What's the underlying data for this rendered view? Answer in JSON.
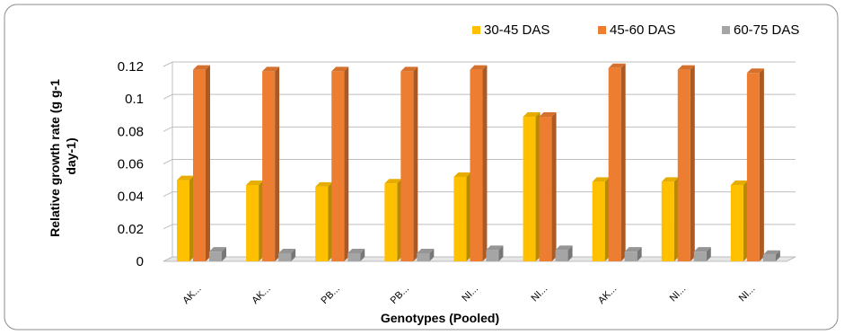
{
  "chart_data": {
    "type": "bar",
    "title": "",
    "xlabel": "Genotypes (Pooled)",
    "ylabel": "Relative growth rate (g g-1 day-1)",
    "ylabel_lines": [
      "Relative growth rate (g g-1",
      "day-1)"
    ],
    "categories": [
      "AK...",
      "AK...",
      "PB...",
      "PB...",
      "NI...",
      "NI...",
      "AK...",
      "NI...",
      "NI..."
    ],
    "yticks": [
      "0",
      "0.02",
      "0.04",
      "0.06",
      "0.08",
      "0.1",
      "0.12"
    ],
    "ylim": [
      0,
      0.12
    ],
    "grid": true,
    "legend_position": "top-right",
    "series": [
      {
        "name": "30-45 DAS",
        "color": "#FFC000",
        "values": [
          0.05,
          0.047,
          0.046,
          0.048,
          0.052,
          0.089,
          0.049,
          0.049,
          0.047
        ]
      },
      {
        "name": "45-60 DAS",
        "color": "#ED7D31",
        "values": [
          0.118,
          0.117,
          0.117,
          0.117,
          0.118,
          0.089,
          0.119,
          0.118,
          0.116
        ]
      },
      {
        "name": "60-75 DAS",
        "color": "#A5A5A5",
        "values": [
          0.006,
          0.005,
          0.005,
          0.005,
          0.007,
          0.007,
          0.006,
          0.006,
          0.004
        ]
      }
    ]
  }
}
